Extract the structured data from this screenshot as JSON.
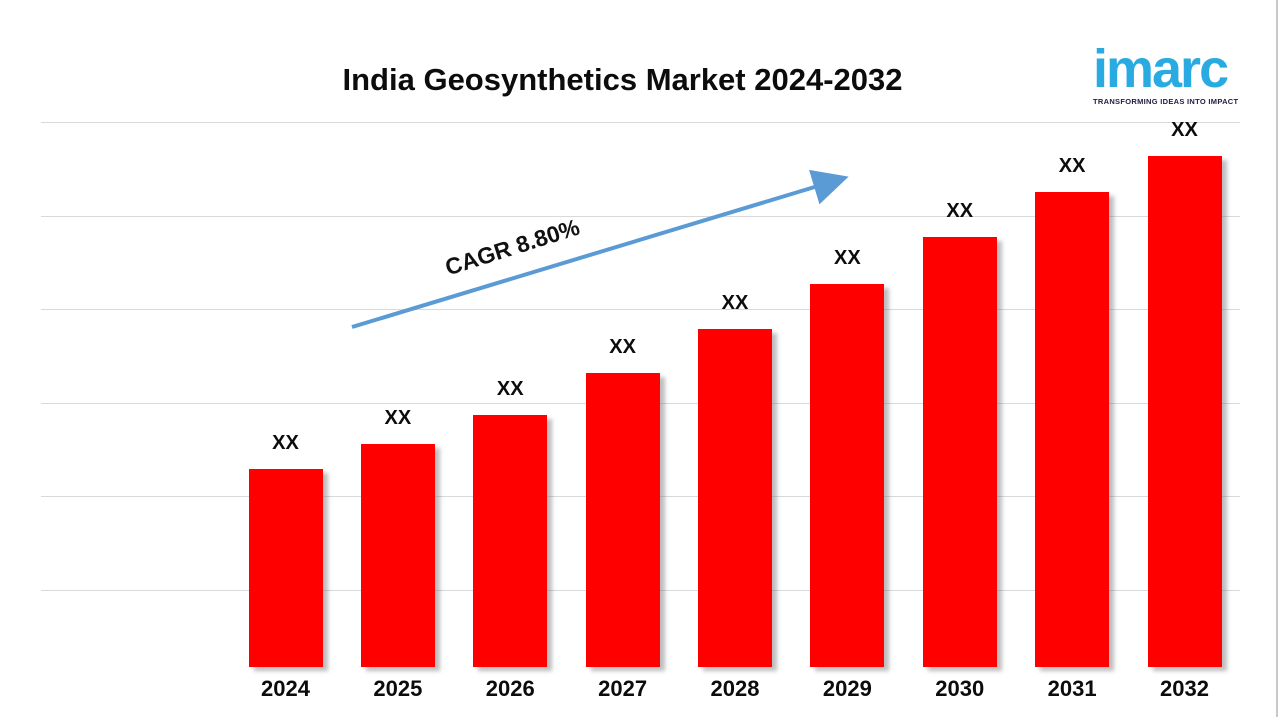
{
  "page": {
    "title": "India Geosynthetics Market 2024-2032"
  },
  "logo": {
    "brand": "imarc",
    "tagline": "TRANSFORMING IDEAS INTO IMPACT"
  },
  "annotation": {
    "label": "CAGR 8.80%"
  },
  "colors": {
    "bar": "#FF0000",
    "arrow": "#5B9BD5",
    "gridline": "#D9D9D9",
    "logo_blue": "#29ABE2",
    "tagline_navy": "#232046",
    "text": "#0C0C0C"
  },
  "chart_data": {
    "type": "bar",
    "title": "India Geosynthetics Market 2024-2032",
    "categories": [
      "2024",
      "2025",
      "2026",
      "2027",
      "2028",
      "2029",
      "2030",
      "2031",
      "2032"
    ],
    "values": [
      "XX",
      "XX",
      "XX",
      "XX",
      "XX",
      "XX",
      "XX",
      "XX",
      "XX"
    ],
    "estimated_heights_pct": [
      36.3,
      40.9,
      46.2,
      53.9,
      62.1,
      70.3,
      78.9,
      87.2,
      93.8
    ],
    "bar_color": "#FF0000",
    "annotation": "CAGR 8.80%",
    "xlabel": "",
    "ylabel": "",
    "legend": "none",
    "grid": "horizontal",
    "gridline_count": 6
  }
}
